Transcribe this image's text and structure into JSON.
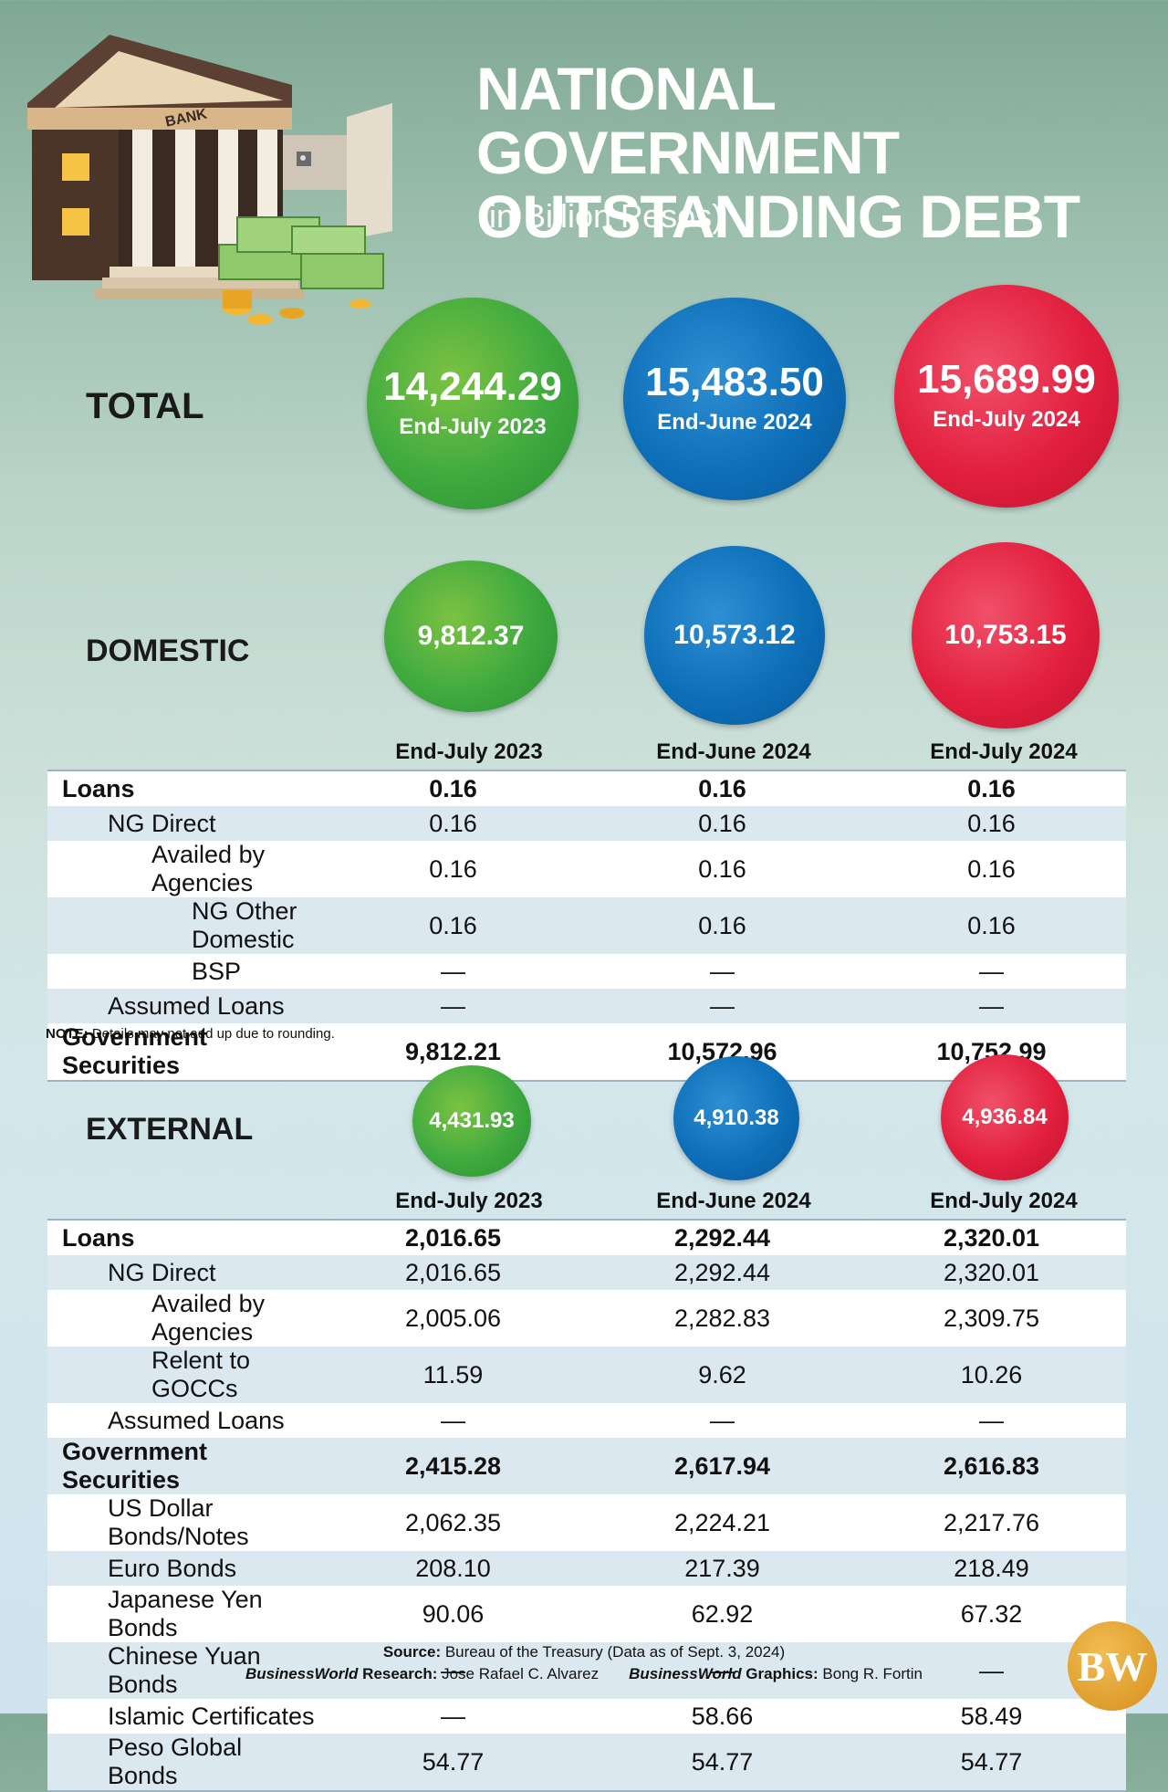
{
  "header": {
    "title_line1": "NATIONAL GOVERNMENT",
    "title_line2": "OUTSTANDING DEBT",
    "subtitle": "(in Billion Pesos)",
    "bank_sign": "BANK"
  },
  "colors": {
    "green": "#3faa3f",
    "blue": "#0d6fb8",
    "red": "#e21f3e"
  },
  "periods": [
    "End-July 2023",
    "End-June 2024",
    "End-July 2024"
  ],
  "total": {
    "label": "TOTAL",
    "values": [
      "14,244.29",
      "15,483.50",
      "15,689.99"
    ]
  },
  "domestic": {
    "label": "DOMESTIC",
    "values": [
      "9,812.37",
      "10,573.12",
      "10,753.15"
    ],
    "rows": [
      {
        "label": "Loans",
        "indent": 0,
        "bold": true,
        "values": [
          "0.16",
          "0.16",
          "0.16"
        ]
      },
      {
        "label": "NG Direct",
        "indent": 1,
        "bold": false,
        "values": [
          "0.16",
          "0.16",
          "0.16"
        ]
      },
      {
        "label": "Availed by Agencies",
        "indent": 2,
        "bold": false,
        "values": [
          "0.16",
          "0.16",
          "0.16"
        ]
      },
      {
        "label": "NG Other Domestic",
        "indent": 3,
        "bold": false,
        "values": [
          "0.16",
          "0.16",
          "0.16"
        ]
      },
      {
        "label": "BSP",
        "indent": 3,
        "bold": false,
        "values": [
          "—",
          "—",
          "—"
        ]
      },
      {
        "label": "Assumed Loans",
        "indent": 1,
        "bold": false,
        "values": [
          "—",
          "—",
          "—"
        ]
      },
      {
        "label": "Government Securities",
        "indent": 0,
        "bold": true,
        "values": [
          "9,812.21",
          "10,572.96",
          "10,752.99"
        ]
      }
    ]
  },
  "note": {
    "label": "NOTE:",
    "text": " Details may not add up due to rounding."
  },
  "external": {
    "label": "EXTERNAL",
    "values": [
      "4,431.93",
      "4,910.38",
      "4,936.84"
    ],
    "rows": [
      {
        "label": "Loans",
        "indent": 0,
        "bold": true,
        "values": [
          "2,016.65",
          "2,292.44",
          "2,320.01"
        ]
      },
      {
        "label": "NG Direct",
        "indent": 1,
        "bold": false,
        "values": [
          "2,016.65",
          "2,292.44",
          "2,320.01"
        ]
      },
      {
        "label": "Availed by Agencies",
        "indent": 2,
        "bold": false,
        "values": [
          "2,005.06",
          "2,282.83",
          "2,309.75"
        ]
      },
      {
        "label": "Relent to GOCCs",
        "indent": 2,
        "bold": false,
        "values": [
          "11.59",
          "9.62",
          "10.26"
        ]
      },
      {
        "label": "Assumed Loans",
        "indent": 1,
        "bold": false,
        "values": [
          "—",
          "—",
          "—"
        ]
      },
      {
        "label": "Government Securities",
        "indent": 0,
        "bold": true,
        "values": [
          "2,415.28",
          "2,617.94",
          "2,616.83"
        ]
      },
      {
        "label": "US Dollar Bonds/Notes",
        "indent": 1,
        "bold": false,
        "values": [
          "2,062.35",
          "2,224.21",
          "2,217.76"
        ]
      },
      {
        "label": "Euro Bonds",
        "indent": 1,
        "bold": false,
        "values": [
          "208.10",
          "217.39",
          "218.49"
        ]
      },
      {
        "label": "Japanese Yen Bonds",
        "indent": 1,
        "bold": false,
        "values": [
          "90.06",
          "62.92",
          "67.32"
        ]
      },
      {
        "label": "Chinese Yuan Bonds",
        "indent": 1,
        "bold": false,
        "values": [
          "—",
          "—",
          "—"
        ]
      },
      {
        "label": "Islamic Certificates",
        "indent": 1,
        "bold": false,
        "values": [
          "—",
          "58.66",
          "58.49"
        ]
      },
      {
        "label": "Peso Global Bonds",
        "indent": 1,
        "bold": false,
        "values": [
          "54.77",
          "54.77",
          "54.77"
        ]
      }
    ]
  },
  "credits": {
    "source_label": "Source:",
    "source_text": " Bureau of the Treasury (Data as of Sept. 3, 2024)",
    "research_brand": "BusinessWorld",
    "research_label": " Research:",
    "research_text": " Jose Rafael C. Alvarez",
    "graphics_brand": "BusinessWorld",
    "graphics_label": " Graphics:",
    "graphics_text": " Bong R. Fortin",
    "logo": "BW"
  },
  "chart_data": {
    "type": "table",
    "title": "NATIONAL GOVERNMENT OUTSTANDING DEBT",
    "subtitle": "(in Billion Pesos)",
    "categories": [
      "End-July 2023",
      "End-June 2024",
      "End-July 2024"
    ],
    "series": [
      {
        "name": "TOTAL",
        "values": [
          14244.29,
          15483.5,
          15689.99
        ]
      },
      {
        "name": "DOMESTIC",
        "values": [
          9812.37,
          10573.12,
          10753.15
        ]
      },
      {
        "name": "EXTERNAL",
        "values": [
          4431.93,
          4910.38,
          4936.84
        ]
      }
    ]
  }
}
